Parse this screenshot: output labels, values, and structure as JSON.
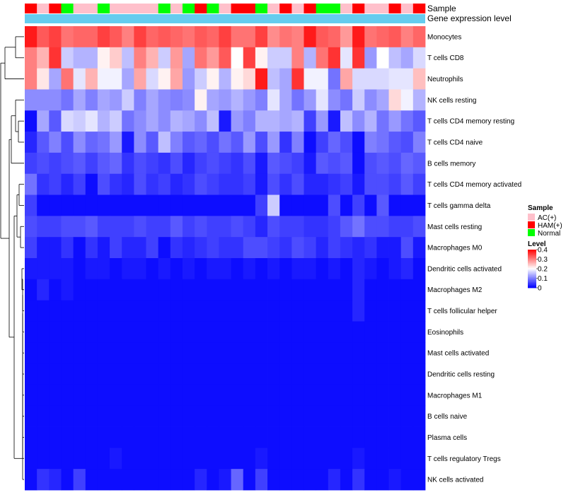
{
  "chart_data": {
    "type": "heatmap",
    "title": "",
    "annotation_labels": [
      "Sample",
      "Gene expression level"
    ],
    "rows": [
      "Monocytes",
      "T cells CD8",
      "Neutrophils",
      "NK cells resting",
      "T cells CD4 memory resting",
      "T cells CD4 naive",
      "B cells memory",
      "T cells CD4 memory activated",
      "T cells gamma delta",
      "Mast cells resting",
      "Macrophages M0",
      "Dendritic cells activated",
      "Macrophages M2",
      "T cells follicular helper",
      "Eosinophils",
      "Mast cells activated",
      "Dendritic cells resting",
      "Macrophages M1",
      "B cells naive",
      "Plasma cells",
      "T cells regulatory  Tregs",
      "NK cells activated"
    ],
    "sample_groups": [
      "HAM(+)",
      "AC(+)",
      "HAM(+)",
      "Normal",
      "AC(+)",
      "AC(+)",
      "Normal",
      "AC(+)",
      "AC(+)",
      "AC(+)",
      "AC(+)",
      "Normal",
      "AC(+)",
      "Normal",
      "HAM(+)",
      "Normal",
      "AC(+)",
      "HAM(+)",
      "HAM(+)",
      "Normal",
      "AC(+)",
      "HAM(+)",
      "AC(+)",
      "HAM(+)",
      "Normal",
      "Normal",
      "AC(+)",
      "HAM(+)",
      "AC(+)",
      "AC(+)",
      "HAM(+)",
      "AC(+)",
      "HAM(+)"
    ],
    "gene_expression_color": "#66ccee",
    "legend_sample": {
      "title": "Sample",
      "entries": [
        {
          "label": "AC(+)",
          "color": "#ffc0cb"
        },
        {
          "label": "HAM(+)",
          "color": "#ff0000"
        },
        {
          "label": "Normal",
          "color": "#00ff00"
        }
      ]
    },
    "legend_level": {
      "title": "Level",
      "ticks": [
        0.4,
        0.3,
        0.2,
        0.1,
        0
      ],
      "tick_labels": [
        "0.4",
        "0.3",
        "0.2",
        "0.1",
        "0"
      ],
      "range": [
        0,
        0.4
      ],
      "colors": {
        "low": "#0000ff",
        "mid": "#ffffff",
        "high": "#ff0000",
        "mid_value": 0.2
      }
    },
    "values": [
      [
        0.38,
        0.33,
        0.35,
        0.31,
        0.32,
        0.32,
        0.35,
        0.33,
        0.3,
        0.35,
        0.32,
        0.33,
        0.32,
        0.31,
        0.33,
        0.32,
        0.35,
        0.31,
        0.31,
        0.35,
        0.29,
        0.31,
        0.3,
        0.38,
        0.33,
        0.32,
        0.28,
        0.38,
        0.31,
        0.32,
        0.33,
        0.3,
        0.32
      ],
      [
        0.3,
        0.26,
        0.36,
        0.16,
        0.14,
        0.14,
        0.21,
        0.24,
        0.15,
        0.3,
        0.26,
        0.16,
        0.28,
        0.13,
        0.31,
        0.28,
        0.33,
        0.2,
        0.35,
        0.21,
        0.16,
        0.16,
        0.3,
        0.14,
        0.31,
        0.36,
        0.18,
        0.36,
        0.12,
        0.2,
        0.15,
        0.13,
        0.17
      ],
      [
        0.3,
        0.22,
        0.13,
        0.31,
        0.18,
        0.26,
        0.19,
        0.19,
        0.13,
        0.27,
        0.17,
        0.21,
        0.27,
        0.12,
        0.16,
        0.21,
        0.14,
        0.21,
        0.23,
        0.38,
        0.15,
        0.13,
        0.36,
        0.19,
        0.19,
        0.09,
        0.27,
        0.17,
        0.17,
        0.17,
        0.18,
        0.18,
        0.25
      ],
      [
        0.11,
        0.11,
        0.11,
        0.09,
        0.13,
        0.1,
        0.13,
        0.12,
        0.16,
        0.1,
        0.13,
        0.11,
        0.1,
        0.11,
        0.21,
        0.13,
        0.12,
        0.14,
        0.12,
        0.1,
        0.18,
        0.13,
        0.09,
        0.12,
        0.18,
        0.11,
        0.09,
        0.16,
        0.11,
        0.13,
        0.23,
        0.19,
        0.14
      ],
      [
        0.01,
        0.13,
        0.07,
        0.17,
        0.16,
        0.18,
        0.14,
        0.16,
        0.09,
        0.11,
        0.13,
        0.11,
        0.14,
        0.13,
        0.11,
        0.15,
        0.02,
        0.12,
        0.1,
        0.14,
        0.14,
        0.13,
        0.14,
        0.05,
        0.12,
        0.02,
        0.15,
        0.11,
        0.14,
        0.09,
        0.12,
        0.09,
        0.07
      ],
      [
        0.03,
        0.07,
        0.1,
        0.06,
        0.11,
        0.08,
        0.09,
        0.12,
        0.02,
        0.11,
        0.07,
        0.15,
        0.1,
        0.07,
        0.08,
        0.06,
        0.09,
        0.07,
        0.12,
        0.06,
        0.12,
        0.04,
        0.1,
        0.01,
        0.05,
        0.08,
        0.06,
        0.01,
        0.1,
        0.09,
        0.07,
        0.06,
        0.1
      ],
      [
        0.05,
        0.06,
        0.05,
        0.06,
        0.07,
        0.05,
        0.07,
        0.08,
        0.04,
        0.06,
        0.05,
        0.04,
        0.06,
        0.03,
        0.05,
        0.06,
        0.05,
        0.04,
        0.06,
        0.02,
        0.07,
        0.06,
        0.05,
        0.02,
        0.07,
        0.06,
        0.07,
        0.01,
        0.06,
        0.07,
        0.06,
        0.08,
        0.07
      ],
      [
        0.09,
        0.04,
        0.05,
        0.03,
        0.05,
        0.01,
        0.06,
        0.04,
        0.03,
        0.06,
        0.04,
        0.05,
        0.03,
        0.04,
        0.06,
        0.05,
        0.04,
        0.04,
        0.05,
        0.02,
        0.06,
        0.04,
        0.06,
        0.03,
        0.03,
        0.04,
        0.05,
        0.02,
        0.06,
        0.06,
        0.05,
        0.07,
        0.05
      ],
      [
        0.05,
        0.01,
        0.01,
        0.01,
        0.01,
        0.01,
        0.01,
        0.01,
        0.01,
        0.01,
        0.01,
        0.01,
        0.01,
        0.01,
        0.01,
        0.01,
        0.01,
        0.01,
        0.01,
        0.05,
        0.16,
        0.01,
        0.01,
        0.01,
        0.01,
        0.06,
        0.01,
        0.05,
        0.01,
        0.07,
        0.01,
        0.01,
        0.01
      ],
      [
        0.06,
        0.05,
        0.05,
        0.06,
        0.06,
        0.07,
        0.05,
        0.05,
        0.05,
        0.06,
        0.05,
        0.05,
        0.07,
        0.05,
        0.06,
        0.05,
        0.05,
        0.06,
        0.05,
        0.03,
        0.06,
        0.05,
        0.05,
        0.04,
        0.04,
        0.05,
        0.07,
        0.09,
        0.06,
        0.06,
        0.05,
        0.05,
        0.06
      ],
      [
        0.05,
        0.02,
        0.02,
        0.04,
        0.01,
        0.04,
        0.02,
        0.05,
        0.03,
        0.03,
        0.05,
        0.01,
        0.04,
        0.03,
        0.04,
        0.05,
        0.04,
        0.04,
        0.06,
        0.06,
        0.05,
        0.04,
        0.06,
        0.05,
        0.03,
        0.05,
        0.04,
        0.03,
        0.04,
        0.02,
        0.02,
        0.06,
        0.02
      ],
      [
        0.02,
        0.02,
        0.02,
        0.02,
        0.01,
        0.02,
        0.02,
        0.01,
        0.02,
        0.02,
        0.01,
        0.02,
        0.01,
        0.02,
        0.01,
        0.02,
        0.02,
        0.01,
        0.02,
        0.01,
        0.02,
        0.01,
        0.02,
        0.02,
        0.01,
        0.02,
        0.01,
        0.03,
        0.02,
        0.01,
        0.02,
        0.03,
        0.01
      ],
      [
        0.01,
        0.03,
        0.01,
        0.02,
        0.01,
        0.01,
        0.01,
        0.01,
        0.01,
        0.01,
        0.01,
        0.01,
        0.01,
        0.01,
        0.01,
        0.01,
        0.01,
        0.01,
        0.01,
        0.01,
        0.01,
        0.01,
        0.01,
        0.01,
        0.01,
        0.01,
        0.01,
        0.03,
        0.01,
        0.01,
        0.01,
        0.01,
        0.01
      ],
      [
        0.01,
        0.01,
        0.01,
        0.01,
        0.01,
        0.01,
        0.01,
        0.01,
        0.01,
        0.01,
        0.01,
        0.01,
        0.01,
        0.01,
        0.01,
        0.01,
        0.01,
        0.01,
        0.01,
        0.01,
        0.01,
        0.01,
        0.01,
        0.01,
        0.01,
        0.01,
        0.01,
        0.03,
        0.01,
        0.01,
        0.01,
        0.01,
        0.01
      ],
      [
        0.01,
        0.01,
        0.01,
        0.01,
        0.01,
        0.01,
        0.01,
        0.01,
        0.01,
        0.01,
        0.01,
        0.01,
        0.01,
        0.01,
        0.01,
        0.01,
        0.01,
        0.01,
        0.01,
        0.01,
        0.01,
        0.01,
        0.01,
        0.01,
        0.01,
        0.01,
        0.01,
        0.01,
        0.01,
        0.01,
        0.01,
        0.01,
        0.01
      ],
      [
        0.01,
        0.01,
        0.01,
        0.01,
        0.01,
        0.01,
        0.01,
        0.01,
        0.01,
        0.01,
        0.01,
        0.01,
        0.01,
        0.01,
        0.01,
        0.01,
        0.01,
        0.01,
        0.01,
        0.01,
        0.01,
        0.01,
        0.01,
        0.01,
        0.01,
        0.01,
        0.01,
        0.01,
        0.01,
        0.01,
        0.01,
        0.01,
        0.01
      ],
      [
        0.01,
        0.01,
        0.01,
        0.01,
        0.01,
        0.01,
        0.01,
        0.01,
        0.01,
        0.01,
        0.01,
        0.01,
        0.01,
        0.01,
        0.01,
        0.01,
        0.01,
        0.01,
        0.01,
        0.01,
        0.01,
        0.01,
        0.01,
        0.01,
        0.01,
        0.01,
        0.01,
        0.01,
        0.01,
        0.01,
        0.01,
        0.01,
        0.01
      ],
      [
        0.01,
        0.01,
        0.01,
        0.01,
        0.01,
        0.01,
        0.01,
        0.01,
        0.01,
        0.01,
        0.01,
        0.01,
        0.01,
        0.01,
        0.01,
        0.01,
        0.01,
        0.01,
        0.01,
        0.01,
        0.01,
        0.01,
        0.01,
        0.01,
        0.01,
        0.01,
        0.01,
        0.01,
        0.01,
        0.01,
        0.01,
        0.01,
        0.01
      ],
      [
        0.01,
        0.01,
        0.01,
        0.01,
        0.01,
        0.01,
        0.01,
        0.01,
        0.01,
        0.01,
        0.01,
        0.01,
        0.01,
        0.01,
        0.01,
        0.01,
        0.01,
        0.01,
        0.01,
        0.01,
        0.01,
        0.01,
        0.01,
        0.01,
        0.01,
        0.01,
        0.01,
        0.01,
        0.01,
        0.01,
        0.01,
        0.01,
        0.01
      ],
      [
        0.01,
        0.01,
        0.01,
        0.01,
        0.01,
        0.01,
        0.01,
        0.01,
        0.01,
        0.01,
        0.01,
        0.01,
        0.01,
        0.01,
        0.01,
        0.01,
        0.01,
        0.01,
        0.01,
        0.01,
        0.01,
        0.01,
        0.01,
        0.01,
        0.01,
        0.01,
        0.01,
        0.01,
        0.01,
        0.01,
        0.01,
        0.01,
        0.01
      ],
      [
        0.01,
        0.01,
        0.01,
        0.01,
        0.01,
        0.01,
        0.01,
        0.02,
        0.01,
        0.01,
        0.01,
        0.01,
        0.01,
        0.01,
        0.01,
        0.01,
        0.01,
        0.01,
        0.01,
        0.02,
        0.01,
        0.01,
        0.01,
        0.01,
        0.01,
        0.01,
        0.01,
        0.02,
        0.01,
        0.01,
        0.01,
        0.01,
        0.01
      ],
      [
        0.01,
        0.04,
        0.03,
        0.01,
        0.05,
        0.01,
        0.01,
        0.01,
        0.01,
        0.01,
        0.01,
        0.01,
        0.01,
        0.01,
        0.03,
        0.01,
        0.02,
        0.08,
        0.01,
        0.05,
        0.01,
        0.01,
        0.01,
        0.01,
        0.01,
        0.03,
        0.01,
        0.04,
        0.01,
        0.01,
        0.02,
        0.01,
        0.01
      ]
    ]
  }
}
